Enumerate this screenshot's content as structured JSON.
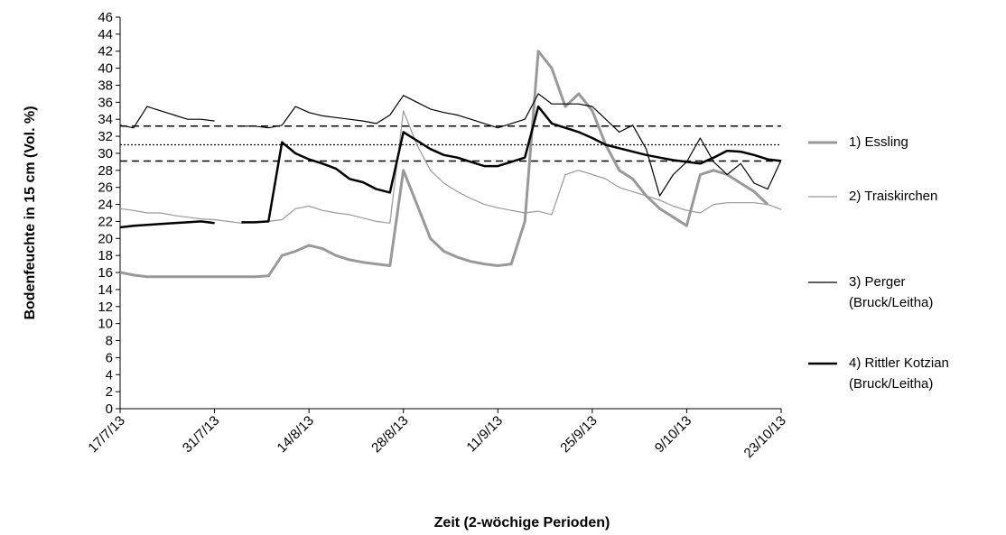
{
  "chart_data": {
    "type": "line",
    "y_label": "Bodenfeuchte in 15 cm (Vol. %)",
    "x_label": "Zeit (2-wöchige Perioden)",
    "x": [
      "2013-07-17",
      "2013-07-19",
      "2013-07-21",
      "2013-07-23",
      "2013-07-25",
      "2013-07-27",
      "2013-07-29",
      "2013-07-31",
      "2013-08-02",
      "2013-08-04",
      "2013-08-06",
      "2013-08-08",
      "2013-08-10",
      "2013-08-12",
      "2013-08-14",
      "2013-08-16",
      "2013-08-18",
      "2013-08-20",
      "2013-08-22",
      "2013-08-24",
      "2013-08-26",
      "2013-08-28",
      "2013-08-30",
      "2013-09-01",
      "2013-09-03",
      "2013-09-05",
      "2013-09-07",
      "2013-09-09",
      "2013-09-11",
      "2013-09-13",
      "2013-09-15",
      "2013-09-17",
      "2013-09-19",
      "2013-09-21",
      "2013-09-23",
      "2013-09-25",
      "2013-09-27",
      "2013-09-29",
      "2013-10-01",
      "2013-10-03",
      "2013-10-05",
      "2013-10-07",
      "2013-10-09",
      "2013-10-11",
      "2013-10-13",
      "2013-10-15",
      "2013-10-17",
      "2013-10-19",
      "2013-10-21",
      "2013-10-23"
    ],
    "series": [
      {
        "name": "1) Essling",
        "color": "#999999",
        "width": 3,
        "values": [
          16,
          15.7,
          15.5,
          15.5,
          15.5,
          15.5,
          15.5,
          15.5,
          15.5,
          15.5,
          15.5,
          15.6,
          18,
          18.5,
          19.2,
          18.8,
          18,
          17.5,
          17.2,
          17,
          16.8,
          28,
          24,
          20,
          18.5,
          17.8,
          17.3,
          17,
          16.8,
          17,
          22,
          42,
          40,
          35.5,
          37,
          35,
          31,
          28,
          27,
          25,
          23.5,
          22.5,
          21.5,
          27.5,
          28,
          27.5,
          26.5,
          25.5,
          24,
          null
        ]
      },
      {
        "name": "2) Traiskirchen",
        "color": "#999999",
        "width": 1.2,
        "values": [
          23.5,
          23.3,
          23,
          23,
          22.7,
          22.5,
          22.3,
          22.2,
          22,
          21.8,
          21.9,
          22,
          22.2,
          23.5,
          23.8,
          23.3,
          23,
          22.8,
          22.4,
          22,
          21.8,
          35,
          31,
          28,
          26.5,
          25.5,
          24.7,
          24,
          23.6,
          23.3,
          23,
          23.2,
          22.8,
          27.5,
          28,
          27.5,
          27,
          26,
          25.5,
          25,
          24.5,
          23.8,
          23.3,
          23,
          24,
          24.2,
          24.2,
          24.2,
          24,
          23.4
        ]
      },
      {
        "name": "3) Perger (Bruck/Leitha)",
        "color": "#000000",
        "width": 1.2,
        "values": [
          33.3,
          33,
          35.5,
          35,
          34.5,
          34,
          34,
          33.8,
          null,
          33.2,
          33.2,
          33,
          33.3,
          35.5,
          34.8,
          34.4,
          34.2,
          34,
          33.8,
          33.5,
          34.5,
          36.8,
          36,
          35.2,
          34.8,
          34.5,
          34,
          33.5,
          33,
          33.5,
          34,
          37,
          35.8,
          35.8,
          35.8,
          35.5,
          34,
          32.5,
          33.3,
          30.5,
          25,
          27.5,
          29,
          31.8,
          29,
          27.5,
          28.8,
          26.5,
          25.8,
          29.2
        ]
      },
      {
        "name": "4) Rittler Kotzian (Bruck/Leitha)",
        "color": "#000000",
        "width": 2.5,
        "values": [
          21.3,
          21.5,
          21.6,
          21.7,
          21.8,
          21.9,
          22,
          21.8,
          null,
          21.9,
          21.9,
          22,
          31.3,
          30,
          29.3,
          28.8,
          28.2,
          27,
          26.6,
          25.8,
          25.4,
          32.5,
          31.5,
          30.5,
          29.8,
          29.5,
          29,
          28.5,
          28.5,
          29,
          29.5,
          35.5,
          33.5,
          33,
          32.5,
          31.8,
          31,
          30.6,
          30.2,
          29.8,
          29.5,
          29.2,
          29,
          28.8,
          29.5,
          30.3,
          30.2,
          29.8,
          29.3,
          29.1
        ]
      }
    ],
    "reference_lines": [
      {
        "value": 33.2,
        "style": "dashed"
      },
      {
        "value": 31,
        "style": "dotted"
      },
      {
        "value": 29.1,
        "style": "dashed"
      }
    ],
    "xlim": [
      "2013-07-17",
      "2013-10-23"
    ],
    "xticks": [
      {
        "value": "2013-07-17",
        "label": "17/7/13"
      },
      {
        "value": "2013-07-31",
        "label": "31/7/13"
      },
      {
        "value": "2013-08-14",
        "label": "14/8/13"
      },
      {
        "value": "2013-08-28",
        "label": "28/8/13"
      },
      {
        "value": "2013-09-11",
        "label": "11/9/13"
      },
      {
        "value": "2013-09-25",
        "label": "25/9/13"
      },
      {
        "value": "2013-10-09",
        "label": "9/10/13"
      },
      {
        "value": "2013-10-23",
        "label": "23/10/13"
      }
    ],
    "ylim": [
      0,
      46
    ],
    "yticks": [
      0,
      2,
      4,
      6,
      8,
      10,
      12,
      14,
      16,
      18,
      20,
      22,
      24,
      26,
      28,
      30,
      32,
      34,
      36,
      38,
      40,
      42,
      44,
      46
    ],
    "grid": false
  }
}
